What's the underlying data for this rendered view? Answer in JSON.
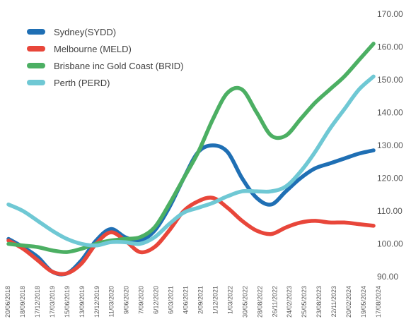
{
  "chart_data": {
    "type": "line",
    "title": "",
    "xlabel": "",
    "ylabel": "",
    "ylim": [
      90,
      170
    ],
    "yticks": [
      "90.00",
      "100.00",
      "110.00",
      "120.00",
      "130.00",
      "140.00",
      "150.00",
      "160.00",
      "170.00"
    ],
    "y_axis_position": "right",
    "grid": false,
    "legend_position": "top-left",
    "x_tick_labels": [
      "20/06/2018",
      "18/09/2018",
      "17/12/2018",
      "17/03/2019",
      "15/06/2019",
      "13/09/2019",
      "12/12/2019",
      "11/03/2020",
      "9/06/2020",
      "7/09/2020",
      "6/12/2020",
      "6/03/2021",
      "4/06/2021",
      "2/09/2021",
      "1/12/2021",
      "1/03/2022",
      "30/05/2022",
      "28/08/2022",
      "26/11/2022",
      "24/02/2023",
      "25/05/2023",
      "23/08/2023",
      "22/11/2023",
      "20/02/2024",
      "19/05/2024",
      "17/08/2024"
    ],
    "x": [
      "2018-06",
      "2018-09",
      "2018-12",
      "2019-03",
      "2019-06",
      "2019-09",
      "2019-12",
      "2020-03",
      "2020-06",
      "2020-09",
      "2020-12",
      "2021-03",
      "2021-06",
      "2021-09",
      "2021-12",
      "2022-03",
      "2022-06",
      "2022-09",
      "2022-12",
      "2023-03",
      "2023-06",
      "2023-09",
      "2023-12",
      "2024-03",
      "2024-06",
      "2024-08"
    ],
    "series": [
      {
        "name": "Sydney(SYDD)",
        "color": "#1f6fb4",
        "values": [
          101.5,
          99.0,
          96.0,
          91.5,
          91.0,
          95.0,
          101.0,
          104.5,
          102.0,
          101.0,
          104.0,
          111.0,
          120.0,
          128.0,
          130.0,
          128.0,
          120.0,
          114.0,
          112.0,
          116.0,
          120.0,
          123.0,
          124.5,
          126.0,
          127.5,
          128.5
        ]
      },
      {
        "name": "Melbourne (MELD)",
        "color": "#e8463a",
        "values": [
          101.0,
          98.5,
          95.0,
          91.5,
          91.0,
          94.0,
          100.0,
          103.5,
          101.0,
          97.5,
          99.0,
          104.0,
          110.0,
          113.0,
          114.0,
          111.0,
          107.0,
          104.0,
          103.0,
          105.0,
          106.5,
          107.0,
          106.5,
          106.5,
          106.0,
          105.5
        ]
      },
      {
        "name": "Brisbane inc Gold Coast (BRID)",
        "color": "#4caf63",
        "values": [
          100.0,
          99.5,
          99.0,
          98.0,
          97.5,
          98.5,
          100.0,
          101.0,
          101.5,
          102.0,
          105.0,
          112.0,
          120.0,
          128.0,
          138.0,
          146.0,
          147.0,
          140.0,
          133.0,
          133.0,
          138.0,
          143.0,
          147.0,
          151.0,
          156.0,
          161.0
        ]
      },
      {
        "name": "Perth (PERD)",
        "color": "#6fc8d4",
        "values": [
          112.0,
          110.0,
          107.0,
          104.0,
          101.5,
          100.0,
          99.5,
          100.5,
          100.5,
          100.0,
          102.0,
          106.0,
          109.5,
          111.0,
          112.5,
          114.5,
          116.0,
          116.0,
          116.0,
          117.5,
          122.0,
          128.0,
          135.0,
          141.0,
          147.0,
          151.0
        ]
      }
    ]
  }
}
